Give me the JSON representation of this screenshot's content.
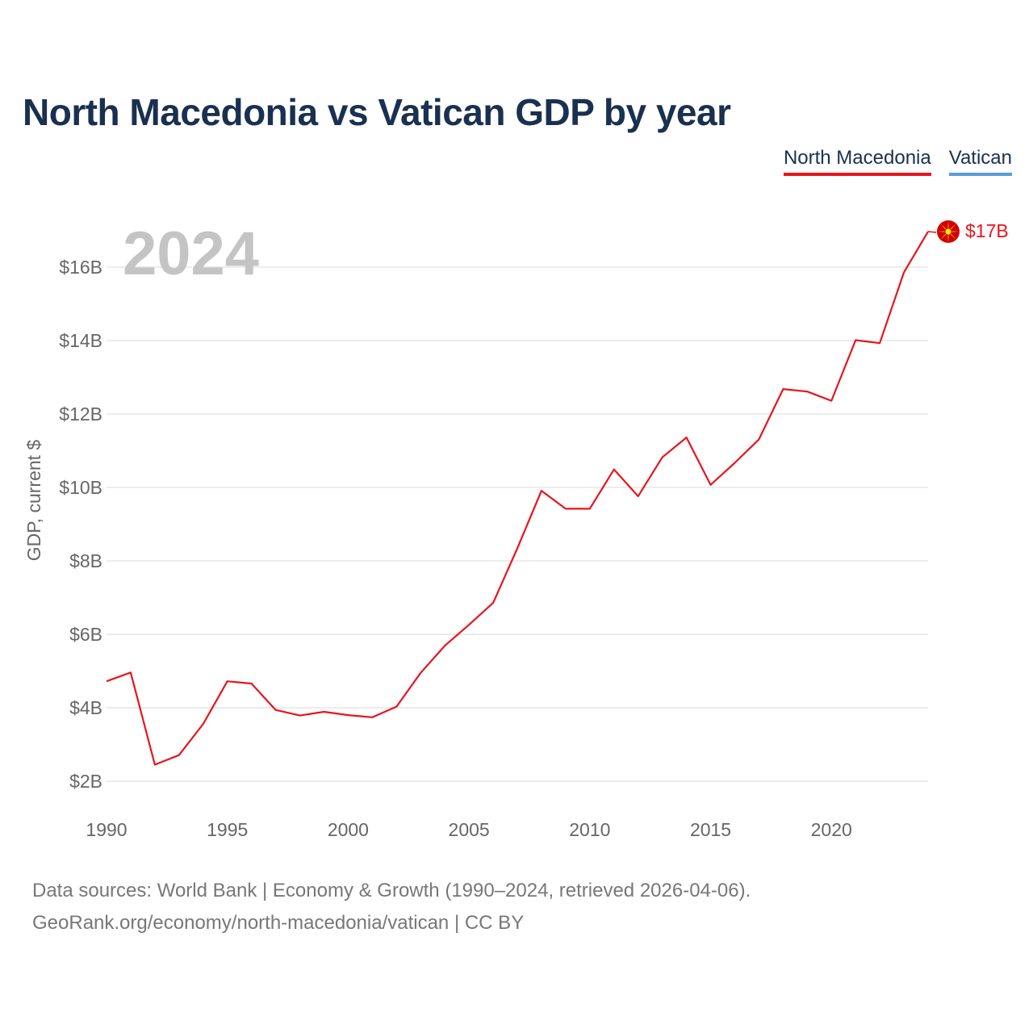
{
  "title": "North Macedonia vs Vatican GDP by year",
  "legend": [
    {
      "label": "North Macedonia",
      "color": "#e8141c"
    },
    {
      "label": "Vatican",
      "color": "#5b9bd8"
    }
  ],
  "current_year": "2024",
  "end_label": "$17B",
  "footer": {
    "line1": "Data sources: World Bank | Economy & Growth (1990–2024, retrieved 2026-04-06).",
    "line2": "GeoRank.org/economy/north-macedonia/vatican | CC BY"
  },
  "chart_data": {
    "type": "line",
    "title": "North Macedonia vs Vatican GDP by year",
    "xlabel": "",
    "ylabel": "GDP, current $",
    "xlim": [
      1990,
      2024
    ],
    "ylim": [
      2,
      17
    ],
    "y_ticks": [
      {
        "value": 2,
        "label": "$2B"
      },
      {
        "value": 4,
        "label": "$4B"
      },
      {
        "value": 6,
        "label": "$6B"
      },
      {
        "value": 8,
        "label": "$8B"
      },
      {
        "value": 10,
        "label": "$10B"
      },
      {
        "value": 12,
        "label": "$12B"
      },
      {
        "value": 14,
        "label": "$14B"
      },
      {
        "value": 16,
        "label": "$16B"
      }
    ],
    "x_ticks": [
      {
        "value": 1990,
        "label": "1990"
      },
      {
        "value": 1995,
        "label": "1995"
      },
      {
        "value": 2000,
        "label": "2000"
      },
      {
        "value": 2005,
        "label": "2005"
      },
      {
        "value": 2010,
        "label": "2010"
      },
      {
        "value": 2015,
        "label": "2015"
      },
      {
        "value": 2020,
        "label": "2020"
      }
    ],
    "grid": true,
    "legend_position": "top-right",
    "series": [
      {
        "name": "North Macedonia",
        "color": "#e8141c",
        "x": [
          1990,
          1991,
          1992,
          1993,
          1994,
          1995,
          1996,
          1997,
          1998,
          1999,
          2000,
          2001,
          2002,
          2003,
          2004,
          2005,
          2006,
          2007,
          2008,
          2009,
          2010,
          2011,
          2012,
          2013,
          2014,
          2015,
          2016,
          2017,
          2018,
          2019,
          2020,
          2021,
          2022,
          2023,
          2024
        ],
        "values": [
          4.72,
          4.96,
          2.45,
          2.71,
          3.56,
          4.72,
          4.66,
          3.94,
          3.79,
          3.89,
          3.8,
          3.74,
          4.03,
          4.95,
          5.69,
          6.26,
          6.86,
          8.34,
          9.91,
          9.42,
          9.42,
          10.49,
          9.76,
          10.82,
          11.36,
          10.07,
          10.67,
          11.31,
          12.68,
          12.61,
          12.36,
          14.01,
          13.93,
          15.86,
          16.97
        ]
      },
      {
        "name": "Vatican",
        "color": "#5b9bd8",
        "x": [],
        "values": []
      }
    ]
  }
}
